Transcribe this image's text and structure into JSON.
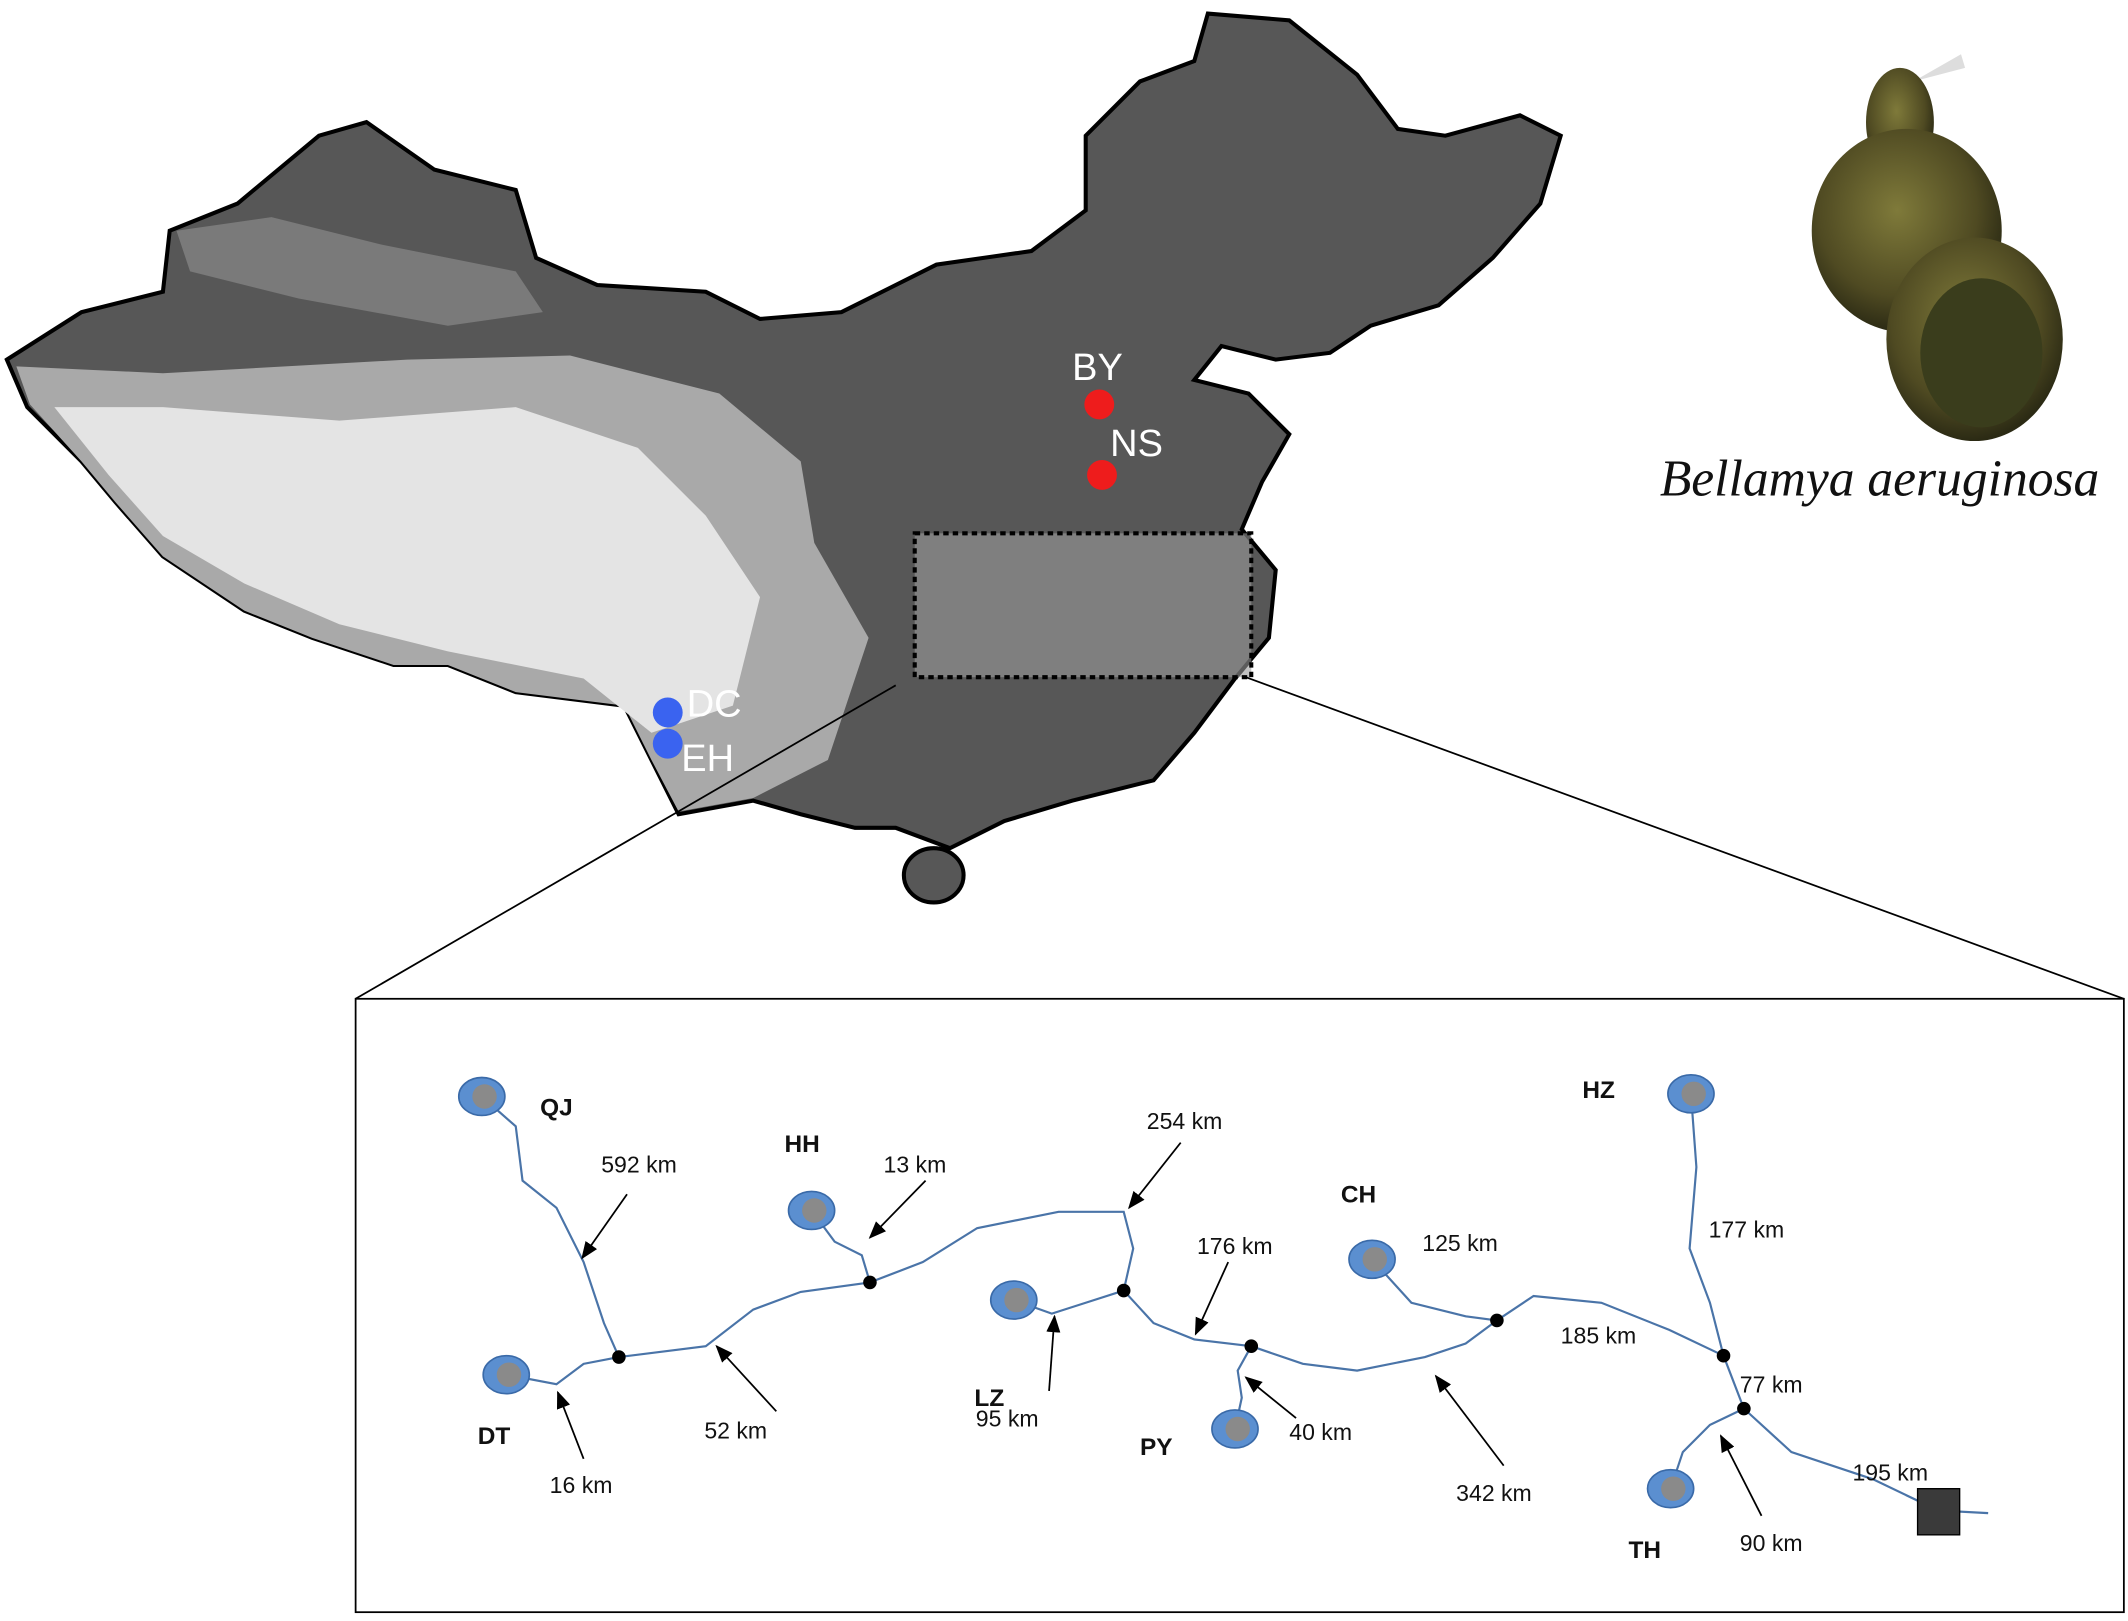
{
  "map": {
    "sites": [
      "BY",
      "NS",
      "DC",
      "EH"
    ]
  },
  "species": "Bellamya aeruginosa",
  "network": {
    "sites": [
      "QJ",
      "HH",
      "LZ",
      "PY",
      "CH",
      "HZ",
      "DT",
      "TH"
    ],
    "distances": [
      "592 km",
      "13 km",
      "254 km",
      "176 km",
      "125 km",
      "177 km",
      "185 km",
      "77 km",
      "195 km",
      "52 km",
      "16 km",
      "95 km",
      "40 km",
      "342 km",
      "90 km"
    ]
  }
}
